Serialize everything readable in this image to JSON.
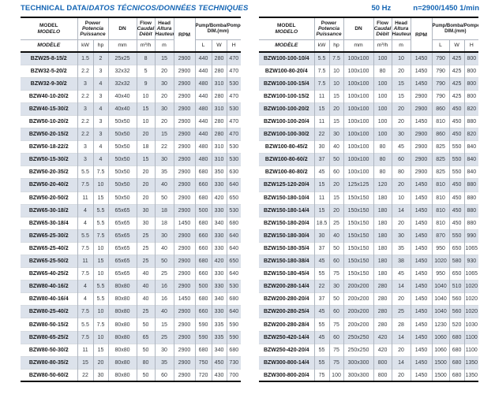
{
  "header": {
    "title_en": "TECHNICAL DATA/",
    "title_intl": "DATOS TÉCNICOS/DONNÉES TECHNIQUES",
    "frequency": "50 Hz",
    "speed": "n=2900/1450 1/min"
  },
  "colors": {
    "accent_blue": "#1465b4",
    "row_stripe": "#dce2eb"
  },
  "cols": {
    "model": {
      "l1": "MODEL",
      "l2": "MODELO",
      "l3": "MODÈLE"
    },
    "power": {
      "l1": "Power",
      "l2": "Potencia",
      "l3": "Puissance"
    },
    "dn": "DN",
    "flow": {
      "l1": "Flow",
      "l2": "Caudal",
      "l3": "Débit"
    },
    "head": {
      "l1": "Head",
      "l2": "Altura",
      "l3": "Hauteur"
    },
    "rpm": "RPM",
    "dim": {
      "l1": "Pump/Bomba/Pompe",
      "l2": "DIM.(mm)"
    },
    "units": {
      "kw": "kW",
      "hp": "hp",
      "mm": "mm",
      "m3h": "m³/h",
      "m": "m",
      "l": "L",
      "w": "W",
      "h": "H"
    }
  },
  "tables": [
    {
      "rows": [
        [
          "BZW25-8-15/2",
          "1.5",
          "2",
          "25x25",
          "8",
          "15",
          "2900",
          "440",
          "280",
          "470"
        ],
        [
          "BZW32-5-20/2",
          "2.2",
          "3",
          "32x32",
          "5",
          "20",
          "2900",
          "440",
          "280",
          "470"
        ],
        [
          "BZW32-9-30/2",
          "3",
          "4",
          "32x32",
          "9",
          "30",
          "2900",
          "480",
          "310",
          "530"
        ],
        [
          "BZW40-10-20/2",
          "2.2",
          "3",
          "40x40",
          "10",
          "20",
          "2900",
          "440",
          "280",
          "470"
        ],
        [
          "BZW40-15-30/2",
          "3",
          "4",
          "40x40",
          "15",
          "30",
          "2900",
          "480",
          "310",
          "530"
        ],
        [
          "BZW50-10-20/2",
          "2.2",
          "3",
          "50x50",
          "10",
          "20",
          "2900",
          "440",
          "280",
          "470"
        ],
        [
          "BZW50-20-15/2",
          "2.2",
          "3",
          "50x50",
          "20",
          "15",
          "2900",
          "440",
          "280",
          "470"
        ],
        [
          "BZW50-18-22/2",
          "3",
          "4",
          "50x50",
          "18",
          "22",
          "2900",
          "480",
          "310",
          "530"
        ],
        [
          "BZW50-15-30/2",
          "3",
          "4",
          "50x50",
          "15",
          "30",
          "2900",
          "480",
          "310",
          "530"
        ],
        [
          "BZW50-20-35/2",
          "5.5",
          "7.5",
          "50x50",
          "20",
          "35",
          "2900",
          "680",
          "350",
          "630"
        ],
        [
          "BZW50-20-40/2",
          "7.5",
          "10",
          "50x50",
          "20",
          "40",
          "2900",
          "660",
          "330",
          "640"
        ],
        [
          "BZW50-20-50/2",
          "11",
          "15",
          "50x50",
          "20",
          "50",
          "2900",
          "680",
          "420",
          "650"
        ],
        [
          "BZW65-30-18/2",
          "4",
          "5.5",
          "65x65",
          "30",
          "18",
          "2900",
          "500",
          "330",
          "530"
        ],
        [
          "BZW65-30-18/4",
          "4",
          "5.5",
          "65x65",
          "30",
          "18",
          "1450",
          "680",
          "340",
          "680"
        ],
        [
          "BZW65-25-30/2",
          "5.5",
          "7.5",
          "65x65",
          "25",
          "30",
          "2900",
          "660",
          "330",
          "640"
        ],
        [
          "BZW65-25-40/2",
          "7.5",
          "10",
          "65x65",
          "25",
          "40",
          "2900",
          "660",
          "330",
          "640"
        ],
        [
          "BZW65-25-50/2",
          "11",
          "15",
          "65x65",
          "25",
          "50",
          "2900",
          "680",
          "420",
          "650"
        ],
        [
          "BZW65-40-25/2",
          "7.5",
          "10",
          "65x65",
          "40",
          "25",
          "2900",
          "660",
          "330",
          "640"
        ],
        [
          "BZW80-40-16/2",
          "4",
          "5.5",
          "80x80",
          "40",
          "16",
          "2900",
          "500",
          "330",
          "530"
        ],
        [
          "BZW80-40-16/4",
          "4",
          "5.5",
          "80x80",
          "40",
          "16",
          "1450",
          "680",
          "340",
          "680"
        ],
        [
          "BZW80-25-40/2",
          "7.5",
          "10",
          "80x80",
          "25",
          "40",
          "2900",
          "660",
          "330",
          "640"
        ],
        [
          "BZW80-50-15/2",
          "5.5",
          "7.5",
          "80x80",
          "50",
          "15",
          "2900",
          "590",
          "335",
          "590"
        ],
        [
          "BZW80-65-25/2",
          "7.5",
          "10",
          "80x80",
          "65",
          "25",
          "2900",
          "590",
          "335",
          "590"
        ],
        [
          "BZW80-50-30/2",
          "11",
          "15",
          "80x80",
          "50",
          "30",
          "2900",
          "680",
          "340",
          "680"
        ],
        [
          "BZW80-80-35/2",
          "15",
          "20",
          "80x80",
          "80",
          "35",
          "2900",
          "750",
          "450",
          "730"
        ],
        [
          "BZW80-50-60/2",
          "22",
          "30",
          "80x80",
          "50",
          "60",
          "2900",
          "720",
          "430",
          "700"
        ]
      ]
    },
    {
      "rows": [
        [
          "BZW100-100-10/4",
          "5.5",
          "7.5",
          "100x100",
          "100",
          "10",
          "1450",
          "790",
          "425",
          "800"
        ],
        [
          "BZW100-80-20/4",
          "7.5",
          "10",
          "100x100",
          "80",
          "20",
          "1450",
          "790",
          "425",
          "800"
        ],
        [
          "BZW100-100-15/4",
          "7.5",
          "10",
          "100x100",
          "100",
          "15",
          "1450",
          "790",
          "425",
          "800"
        ],
        [
          "BZW100-100-15/2",
          "11",
          "15",
          "100x100",
          "100",
          "15",
          "2900",
          "790",
          "425",
          "800"
        ],
        [
          "BZW100-100-20/2",
          "15",
          "20",
          "100x100",
          "100",
          "20",
          "2900",
          "860",
          "450",
          "820"
        ],
        [
          "BZW100-100-20/4",
          "11",
          "15",
          "100x100",
          "100",
          "20",
          "1450",
          "810",
          "450",
          "880"
        ],
        [
          "BZW100-100-30/2",
          "22",
          "30",
          "100x100",
          "100",
          "30",
          "2900",
          "860",
          "450",
          "820"
        ],
        [
          "BZW100-80-45/2",
          "30",
          "40",
          "100x100",
          "80",
          "45",
          "2900",
          "825",
          "550",
          "840"
        ],
        [
          "BZW100-80-60/2",
          "37",
          "50",
          "100x100",
          "80",
          "60",
          "2900",
          "825",
          "550",
          "840"
        ],
        [
          "BZW100-80-80/2",
          "45",
          "60",
          "100x100",
          "80",
          "80",
          "2900",
          "825",
          "550",
          "840"
        ],
        [
          "BZW125-120-20/4",
          "15",
          "20",
          "125x125",
          "120",
          "20",
          "1450",
          "810",
          "450",
          "880"
        ],
        [
          "BZW150-180-10/4",
          "11",
          "15",
          "150x150",
          "180",
          "10",
          "1450",
          "810",
          "450",
          "880"
        ],
        [
          "BZW150-180-14/4",
          "15",
          "20",
          "150x150",
          "180",
          "14",
          "1450",
          "810",
          "450",
          "880"
        ],
        [
          "BZW150-180-20/4",
          "18.5",
          "25",
          "150x150",
          "180",
          "20",
          "1450",
          "810",
          "450",
          "880"
        ],
        [
          "BZW150-180-30/4",
          "30",
          "40",
          "150x150",
          "180",
          "30",
          "1450",
          "870",
          "550",
          "990"
        ],
        [
          "BZW150-180-35/4",
          "37",
          "50",
          "150x150",
          "180",
          "35",
          "1450",
          "950",
          "650",
          "1065"
        ],
        [
          "BZW150-180-38/4",
          "45",
          "60",
          "150x150",
          "180",
          "38",
          "1450",
          "1020",
          "580",
          "930"
        ],
        [
          "BZW150-180-45/4",
          "55",
          "75",
          "150x150",
          "180",
          "45",
          "1450",
          "950",
          "650",
          "1065"
        ],
        [
          "BZW200-280-14/4",
          "22",
          "30",
          "200x200",
          "280",
          "14",
          "1450",
          "1040",
          "510",
          "1020"
        ],
        [
          "BZW200-280-20/4",
          "37",
          "50",
          "200x200",
          "280",
          "20",
          "1450",
          "1040",
          "560",
          "1020"
        ],
        [
          "BZW200-280-25/4",
          "45",
          "60",
          "200x200",
          "280",
          "25",
          "1450",
          "1040",
          "560",
          "1020"
        ],
        [
          "BZW200-280-28/4",
          "55",
          "75",
          "200x200",
          "280",
          "28",
          "1450",
          "1230",
          "520",
          "1030"
        ],
        [
          "BZW250-420-14/4",
          "45",
          "60",
          "250x250",
          "420",
          "14",
          "1450",
          "1060",
          "680",
          "1100"
        ],
        [
          "BZW250-420-20/4",
          "55",
          "75",
          "250x250",
          "420",
          "20",
          "1450",
          "1060",
          "680",
          "1100"
        ],
        [
          "BZW300-800-14/4",
          "55",
          "75",
          "300x300",
          "800",
          "14",
          "1450",
          "1500",
          "680",
          "1350"
        ],
        [
          "BZW300-800-20/4",
          "75",
          "100",
          "300x300",
          "800",
          "20",
          "1450",
          "1500",
          "680",
          "1350"
        ]
      ]
    }
  ]
}
